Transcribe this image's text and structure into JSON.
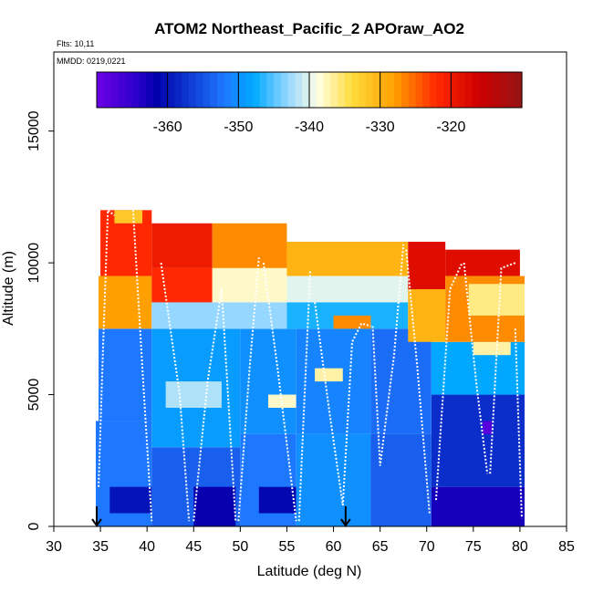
{
  "chart_data": {
    "type": "heatmap",
    "title": "ATOM2 Northeast_Pacific_2 APOraw_AO2",
    "flights_label": "Flts: 10,11",
    "date_label": "MMDD: 0219,0221",
    "xlabel": "Latitude (deg N)",
    "ylabel": "Altitude (m)",
    "xlim": [
      30,
      85
    ],
    "ylim": [
      0,
      18000
    ],
    "xticks": [
      30,
      35,
      40,
      45,
      50,
      55,
      60,
      65,
      70,
      75,
      80,
      85
    ],
    "yticks": [
      0,
      5000,
      10000,
      15000
    ],
    "colorbar": {
      "range": [
        -370,
        -310
      ],
      "ticks": [
        -360,
        -350,
        -340,
        -330,
        -320
      ],
      "tick_labels": [
        "-360",
        "-350",
        "-340",
        "-330",
        "-320"
      ]
    },
    "markers": [
      {
        "name": "arrow-left",
        "lat": 34.6
      },
      {
        "name": "arrow-right",
        "lat": 61.3
      }
    ],
    "bins": [
      {
        "lat0": 34.5,
        "lat1": 40.5,
        "alt0": 0,
        "alt1": 4000,
        "value": -352
      },
      {
        "lat0": 36.0,
        "lat1": 40.5,
        "alt0": 500,
        "alt1": 1500,
        "value": -360
      },
      {
        "lat0": 40.5,
        "lat1": 50.0,
        "alt0": 0,
        "alt1": 3000,
        "value": -354
      },
      {
        "lat0": 45.0,
        "lat1": 49.5,
        "alt0": 0,
        "alt1": 1500,
        "value": -362
      },
      {
        "lat0": 50.0,
        "lat1": 56.0,
        "alt0": 0,
        "alt1": 3500,
        "value": -352
      },
      {
        "lat0": 52.0,
        "lat1": 56.0,
        "alt0": 500,
        "alt1": 1500,
        "value": -361
      },
      {
        "lat0": 56.0,
        "lat1": 64.0,
        "alt0": 0,
        "alt1": 3500,
        "value": -350
      },
      {
        "lat0": 64.0,
        "lat1": 70.5,
        "alt0": 0,
        "alt1": 3500,
        "value": -354
      },
      {
        "lat0": 70.5,
        "lat1": 80.5,
        "alt0": 0,
        "alt1": 1500,
        "value": -363
      },
      {
        "lat0": 70.5,
        "lat1": 80.5,
        "alt0": 1500,
        "alt1": 5000,
        "value": -358
      },
      {
        "lat0": 76.0,
        "lat1": 77.0,
        "alt0": 3500,
        "alt1": 4000,
        "value": -368
      },
      {
        "lat0": 34.8,
        "lat1": 40.5,
        "alt0": 4000,
        "alt1": 7500,
        "value": -352
      },
      {
        "lat0": 40.5,
        "lat1": 50.0,
        "alt0": 3000,
        "alt1": 7500,
        "value": -349
      },
      {
        "lat0": 42.0,
        "lat1": 48.0,
        "alt0": 4500,
        "alt1": 5500,
        "value": -342
      },
      {
        "lat0": 50.0,
        "lat1": 56.0,
        "alt0": 3500,
        "alt1": 7500,
        "value": -350
      },
      {
        "lat0": 53.0,
        "lat1": 56.0,
        "alt0": 4500,
        "alt1": 5000,
        "value": -338
      },
      {
        "lat0": 56.0,
        "lat1": 64.0,
        "alt0": 3500,
        "alt1": 7500,
        "value": -351
      },
      {
        "lat0": 58.0,
        "lat1": 61.0,
        "alt0": 5500,
        "alt1": 6000,
        "value": -337
      },
      {
        "lat0": 64.0,
        "lat1": 70.5,
        "alt0": 3500,
        "alt1": 7500,
        "value": -353
      },
      {
        "lat0": 70.5,
        "lat1": 80.5,
        "alt0": 5000,
        "alt1": 7000,
        "value": -348
      },
      {
        "lat0": 75.0,
        "lat1": 79.0,
        "alt0": 6500,
        "alt1": 7000,
        "value": -337
      },
      {
        "lat0": 34.8,
        "lat1": 40.5,
        "alt0": 7500,
        "alt1": 9500,
        "value": -328
      },
      {
        "lat0": 35.0,
        "lat1": 40.5,
        "alt0": 9500,
        "alt1": 12000,
        "value": -322
      },
      {
        "lat0": 36.5,
        "lat1": 39.5,
        "alt0": 11500,
        "alt1": 12000,
        "value": -332
      },
      {
        "lat0": 40.5,
        "lat1": 47.0,
        "alt0": 9800,
        "alt1": 11500,
        "value": -320
      },
      {
        "lat0": 47.0,
        "lat1": 55.0,
        "alt0": 9800,
        "alt1": 11500,
        "value": -327
      },
      {
        "lat0": 40.5,
        "lat1": 47.0,
        "alt0": 8500,
        "alt1": 9800,
        "value": -322
      },
      {
        "lat0": 47.0,
        "lat1": 55.0,
        "alt0": 8500,
        "alt1": 9800,
        "value": -338
      },
      {
        "lat0": 40.5,
        "lat1": 55.0,
        "alt0": 7500,
        "alt1": 8500,
        "value": -343
      },
      {
        "lat0": 55.0,
        "lat1": 68.0,
        "alt0": 9500,
        "alt1": 10800,
        "value": -330
      },
      {
        "lat0": 55.0,
        "lat1": 68.0,
        "alt0": 8500,
        "alt1": 9500,
        "value": -340
      },
      {
        "lat0": 55.0,
        "lat1": 68.0,
        "alt0": 7500,
        "alt1": 8500,
        "value": -347
      },
      {
        "lat0": 60.0,
        "lat1": 64.0,
        "alt0": 7500,
        "alt1": 8000,
        "value": -327
      },
      {
        "lat0": 68.0,
        "lat1": 72.0,
        "alt0": 9000,
        "alt1": 10800,
        "value": -318
      },
      {
        "lat0": 72.0,
        "lat1": 80.0,
        "alt0": 9500,
        "alt1": 10500,
        "value": -318
      },
      {
        "lat0": 68.0,
        "lat1": 72.0,
        "alt0": 7000,
        "alt1": 9000,
        "value": -330
      },
      {
        "lat0": 72.0,
        "lat1": 80.5,
        "alt0": 7000,
        "alt1": 9500,
        "value": -327
      },
      {
        "lat0": 74.5,
        "lat1": 80.5,
        "alt0": 8000,
        "alt1": 9200,
        "value": -336
      }
    ],
    "flight_tracks": [
      [
        [
          34.8,
          1500
        ],
        [
          35.3,
          7000
        ],
        [
          35.8,
          12000
        ],
        [
          36.5,
          11800
        ]
      ],
      [
        [
          38.5,
          12000
        ],
        [
          39.5,
          6000
        ],
        [
          40.5,
          200
        ]
      ],
      [
        [
          41.5,
          10000
        ],
        [
          42.5,
          7500
        ],
        [
          43.5,
          5000
        ],
        [
          44.5,
          200
        ]
      ],
      [
        [
          45.0,
          200
        ],
        [
          46.5,
          5500
        ],
        [
          48.0,
          9000
        ],
        [
          49.5,
          200
        ]
      ],
      [
        [
          49.8,
          200
        ],
        [
          51.0,
          6000
        ],
        [
          52.0,
          10200
        ]
      ],
      [
        [
          52.5,
          10000
        ],
        [
          54.0,
          6000
        ],
        [
          56.0,
          200
        ]
      ],
      [
        [
          56.3,
          200
        ],
        [
          57.5,
          9700
        ]
      ],
      [
        [
          58.0,
          8500
        ],
        [
          59.5,
          4500
        ],
        [
          61.0,
          800
        ]
      ],
      [
        [
          61.0,
          800
        ],
        [
          62.0,
          7000
        ],
        [
          63.0,
          7700
        ],
        [
          64.0,
          7600
        ]
      ],
      [
        [
          64.2,
          7600
        ],
        [
          65.0,
          2300
        ],
        [
          66.5,
          6500
        ],
        [
          67.5,
          10700
        ]
      ],
      [
        [
          67.8,
          10500
        ],
        [
          69.0,
          6000
        ],
        [
          70.3,
          500
        ]
      ],
      [
        [
          71.0,
          1000
        ],
        [
          72.5,
          9000
        ],
        [
          73.8,
          10000
        ]
      ],
      [
        [
          74.0,
          10000
        ],
        [
          75.3,
          5500
        ],
        [
          76.5,
          2000
        ]
      ],
      [
        [
          76.8,
          2000
        ],
        [
          78.0,
          9800
        ],
        [
          79.5,
          10000
        ]
      ],
      [
        [
          79.5,
          7500
        ],
        [
          80.2,
          300
        ]
      ]
    ]
  }
}
